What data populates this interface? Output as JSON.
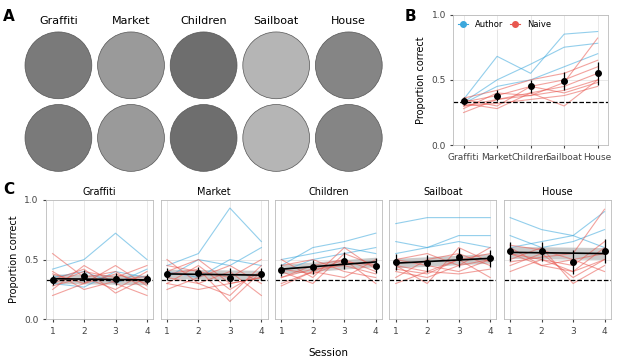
{
  "chart_data": [
    {
      "type": "image_grid",
      "panel": "A",
      "categories": [
        "Graffiti",
        "Market",
        "Children",
        "Sailboat",
        "House"
      ]
    },
    {
      "type": "line",
      "panel": "B",
      "ylabel": "Proportion correct",
      "categories": [
        "Graffiti",
        "Market",
        "Children",
        "Sailboat",
        "House"
      ],
      "ylim": [
        0,
        1.0
      ],
      "yticks": [
        {
          "value": 0,
          "label": "0.0"
        },
        {
          "value": 0.5,
          "label": "0.5"
        },
        {
          "value": 1.0,
          "label": "1.0"
        }
      ],
      "grid": true,
      "legend": "upper left",
      "reference_line": 0.333,
      "groups": [
        {
          "name": "Author",
          "color": "#3ba7dc",
          "lines": [
            [
              0.35,
              0.68,
              0.55,
              0.85,
              0.87
            ],
            [
              0.33,
              0.5,
              0.62,
              0.75,
              0.78
            ],
            [
              0.32,
              0.45,
              0.5,
              0.6,
              0.7
            ]
          ]
        },
        {
          "name": "Naive",
          "color": "#e8574f",
          "lines": [
            [
              0.3,
              0.35,
              0.4,
              0.45,
              0.55
            ],
            [
              0.35,
              0.3,
              0.45,
              0.5,
              0.6
            ],
            [
              0.28,
              0.4,
              0.38,
              0.42,
              0.5
            ],
            [
              0.33,
              0.38,
              0.45,
              0.4,
              0.48
            ],
            [
              0.3,
              0.32,
              0.35,
              0.38,
              0.45
            ],
            [
              0.36,
              0.42,
              0.5,
              0.55,
              0.65
            ],
            [
              0.32,
              0.28,
              0.4,
              0.3,
              0.5
            ],
            [
              0.25,
              0.35,
              0.38,
              0.48,
              0.82
            ]
          ]
        }
      ],
      "mean": [
        0.34,
        0.38,
        0.45,
        0.49,
        0.55
      ],
      "error": [
        0.03,
        0.04,
        0.05,
        0.07,
        0.09
      ]
    },
    {
      "type": "small_multiples",
      "panel": "C",
      "xlabel": "Session",
      "ylabel": "Proportion correct",
      "x": [
        1,
        2,
        3,
        4
      ],
      "xlim": [
        0.8,
        4.2
      ],
      "xticks": [
        1,
        2,
        3,
        4
      ],
      "ylim": [
        0,
        1.0
      ],
      "yticks": [
        {
          "value": 0,
          "label": "0.0"
        },
        {
          "value": 0.5,
          "label": "0.5"
        },
        {
          "value": 1.0,
          "label": "1.0"
        }
      ],
      "grid": true,
      "reference_line": 0.333,
      "panels": [
        {
          "title": "Graffiti",
          "groups": [
            {
              "color": "#3ba7dc",
              "lines": [
                [
                  0.42,
                  0.5,
                  0.72,
                  0.5
                ],
                [
                  0.3,
                  0.27,
                  0.4,
                  0.35
                ],
                [
                  0.35,
                  0.4,
                  0.3,
                  0.42
                ]
              ]
            },
            {
              "color": "#e8574f",
              "lines": [
                [
                  0.55,
                  0.35,
                  0.25,
                  0.4
                ],
                [
                  0.25,
                  0.45,
                  0.3,
                  0.2
                ],
                [
                  0.38,
                  0.3,
                  0.45,
                  0.28
                ],
                [
                  0.3,
                  0.4,
                  0.35,
                  0.45
                ],
                [
                  0.2,
                  0.3,
                  0.38,
                  0.3
                ],
                [
                  0.4,
                  0.25,
                  0.32,
                  0.36
                ],
                [
                  0.33,
                  0.42,
                  0.22,
                  0.35
                ],
                [
                  0.28,
                  0.35,
                  0.4,
                  0.25
                ]
              ]
            }
          ],
          "mean": [
            0.33,
            0.36,
            0.34,
            0.34
          ],
          "error": [
            0.04,
            0.05,
            0.05,
            0.04
          ],
          "fit": [
            0.34,
            0.33
          ],
          "fit_lower": [
            0.3,
            0.29
          ],
          "fit_upper": [
            0.38,
            0.37
          ]
        },
        {
          "title": "Market",
          "groups": [
            {
              "color": "#3ba7dc",
              "lines": [
                [
                  0.45,
                  0.55,
                  0.93,
                  0.65
                ],
                [
                  0.35,
                  0.5,
                  0.45,
                  0.6
                ],
                [
                  0.4,
                  0.35,
                  0.5,
                  0.45
                ]
              ]
            },
            {
              "color": "#e8574f",
              "lines": [
                [
                  0.5,
                  0.3,
                  0.4,
                  0.2
                ],
                [
                  0.3,
                  0.45,
                  0.25,
                  0.4
                ],
                [
                  0.35,
                  0.3,
                  0.2,
                  0.45
                ],
                [
                  0.4,
                  0.5,
                  0.3,
                  0.35
                ],
                [
                  0.25,
                  0.35,
                  0.45,
                  0.3
                ],
                [
                  0.45,
                  0.4,
                  0.35,
                  0.5
                ],
                [
                  0.3,
                  0.25,
                  0.3,
                  0.35
                ],
                [
                  0.38,
                  0.42,
                  0.15,
                  0.4
                ]
              ]
            }
          ],
          "mean": [
            0.38,
            0.39,
            0.35,
            0.38
          ],
          "error": [
            0.05,
            0.05,
            0.08,
            0.05
          ],
          "fit": [
            0.38,
            0.37
          ],
          "fit_lower": [
            0.34,
            0.33
          ],
          "fit_upper": [
            0.42,
            0.41
          ]
        },
        {
          "title": "Children",
          "groups": [
            {
              "color": "#3ba7dc",
              "lines": [
                [
                  0.45,
                  0.6,
                  0.65,
                  0.72
                ],
                [
                  0.5,
                  0.55,
                  0.6,
                  0.55
                ],
                [
                  0.4,
                  0.5,
                  0.55,
                  0.6
                ]
              ]
            },
            {
              "color": "#e8574f",
              "lines": [
                [
                  0.35,
                  0.45,
                  0.5,
                  0.4
                ],
                [
                  0.4,
                  0.3,
                  0.55,
                  0.45
                ],
                [
                  0.3,
                  0.4,
                  0.35,
                  0.5
                ],
                [
                  0.45,
                  0.5,
                  0.4,
                  0.35
                ],
                [
                  0.5,
                  0.35,
                  0.6,
                  0.42
                ],
                [
                  0.35,
                  0.42,
                  0.45,
                  0.38
                ],
                [
                  0.28,
                  0.4,
                  0.5,
                  0.3
                ],
                [
                  0.42,
                  0.38,
                  0.48,
                  0.45
                ]
              ]
            }
          ],
          "mean": [
            0.41,
            0.44,
            0.49,
            0.45
          ],
          "error": [
            0.05,
            0.06,
            0.07,
            0.06
          ],
          "fit": [
            0.42,
            0.48
          ],
          "fit_lower": [
            0.38,
            0.44
          ],
          "fit_upper": [
            0.46,
            0.52
          ]
        },
        {
          "title": "Sailboat",
          "groups": [
            {
              "color": "#3ba7dc",
              "lines": [
                [
                  0.8,
                  0.85,
                  0.85,
                  0.85
                ],
                [
                  0.65,
                  0.6,
                  0.7,
                  0.7
                ],
                [
                  0.55,
                  0.6,
                  0.65,
                  0.6
                ]
              ]
            },
            {
              "color": "#e8574f",
              "lines": [
                [
                  0.45,
                  0.4,
                  0.5,
                  0.55
                ],
                [
                  0.4,
                  0.35,
                  0.45,
                  0.6
                ],
                [
                  0.5,
                  0.45,
                  0.4,
                  0.5
                ],
                [
                  0.35,
                  0.5,
                  0.55,
                  0.45
                ],
                [
                  0.42,
                  0.38,
                  0.5,
                  0.35
                ],
                [
                  0.5,
                  0.55,
                  0.45,
                  0.5
                ],
                [
                  0.3,
                  0.4,
                  0.38,
                  0.42
                ],
                [
                  0.45,
                  0.3,
                  0.6,
                  0.48
                ]
              ]
            }
          ],
          "mean": [
            0.48,
            0.47,
            0.52,
            0.51
          ],
          "error": [
            0.07,
            0.07,
            0.08,
            0.07
          ],
          "fit": [
            0.47,
            0.51
          ],
          "fit_lower": [
            0.43,
            0.47
          ],
          "fit_upper": [
            0.51,
            0.55
          ]
        },
        {
          "title": "House",
          "groups": [
            {
              "color": "#3ba7dc",
              "lines": [
                [
                  0.85,
                  0.75,
                  0.7,
                  0.9
                ],
                [
                  0.6,
                  0.65,
                  0.7,
                  0.6
                ],
                [
                  0.7,
                  0.6,
                  0.65,
                  0.75
                ]
              ]
            },
            {
              "color": "#e8574f",
              "lines": [
                [
                  0.55,
                  0.5,
                  0.4,
                  0.6
                ],
                [
                  0.45,
                  0.55,
                  0.35,
                  0.5
                ],
                [
                  0.6,
                  0.45,
                  0.5,
                  0.55
                ],
                [
                  0.5,
                  0.6,
                  0.3,
                  0.45
                ],
                [
                  0.4,
                  0.5,
                  0.45,
                  0.65
                ],
                [
                  0.55,
                  0.45,
                  0.4,
                  0.5
                ],
                [
                  0.62,
                  0.58,
                  0.5,
                  0.4
                ],
                [
                  0.48,
                  0.52,
                  0.55,
                  0.92
                ]
              ]
            }
          ],
          "mean": [
            0.57,
            0.57,
            0.48,
            0.57
          ],
          "error": [
            0.08,
            0.08,
            0.1,
            0.1
          ],
          "fit": [
            0.56,
            0.55
          ],
          "fit_lower": [
            0.51,
            0.5
          ],
          "fit_upper": [
            0.61,
            0.6
          ]
        }
      ]
    }
  ]
}
